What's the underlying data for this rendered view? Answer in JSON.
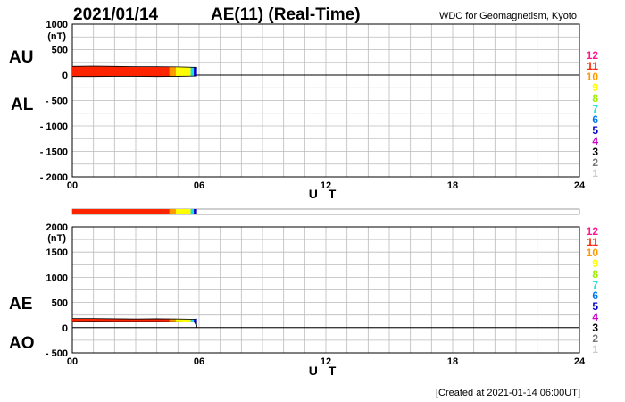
{
  "header": {
    "date": "2021/01/14",
    "title": "AE(11) (Real-Time)",
    "source": "WDC for Geomagnetism, Kyoto"
  },
  "footer": {
    "created": "[Created at 2021-01-14 06:00UT]"
  },
  "legend": {
    "items": [
      {
        "label": "12",
        "color": "#ff1493"
      },
      {
        "label": "11",
        "color": "#ff2400"
      },
      {
        "label": "10",
        "color": "#ff9900"
      },
      {
        "label": "9",
        "color": "#ffff00"
      },
      {
        "label": "8",
        "color": "#99ee00"
      },
      {
        "label": "7",
        "color": "#22dddd"
      },
      {
        "label": "6",
        "color": "#0077ee"
      },
      {
        "label": "5",
        "color": "#0000cc"
      },
      {
        "label": "4",
        "color": "#cc00cc"
      },
      {
        "label": "3",
        "color": "#000000"
      },
      {
        "label": "2",
        "color": "#777777"
      },
      {
        "label": "1",
        "color": "#cccccc"
      }
    ]
  },
  "chart_data": [
    {
      "type": "area",
      "name": "AU/AL",
      "series_labels": [
        "AU",
        "AL"
      ],
      "unit_label": "(nT)",
      "xlabel": "U T",
      "xlim": [
        0,
        24
      ],
      "ylim": [
        -2000,
        1000
      ],
      "x_ticks": [
        "00",
        "06",
        "12",
        "18",
        "24"
      ],
      "y_ticks": [
        "1000",
        "500",
        "0",
        "- 500",
        "- 1000",
        "- 1500",
        "- 2000"
      ],
      "y_tick_values": [
        1000,
        500,
        0,
        -500,
        -1000,
        -1500,
        -2000
      ],
      "grid": true,
      "data_end_hour": 5.9,
      "series": [
        {
          "name": "AU",
          "x": [
            0,
            1,
            2,
            3,
            4,
            5,
            5.9
          ],
          "values": [
            170,
            175,
            170,
            165,
            165,
            160,
            150
          ]
        },
        {
          "name": "AL",
          "x": [
            0,
            1,
            2,
            3,
            4,
            5,
            5.9
          ],
          "values": [
            -30,
            -30,
            -25,
            -25,
            -30,
            -25,
            -20
          ]
        }
      ],
      "station_count_bands": [
        {
          "x0": 0,
          "x1": 4.6,
          "count": 11
        },
        {
          "x0": 4.6,
          "x1": 4.9,
          "count": 10
        },
        {
          "x0": 4.9,
          "x1": 5.1,
          "count": 9
        },
        {
          "x0": 5.1,
          "x1": 5.6,
          "count": 9
        },
        {
          "x0": 5.6,
          "x1": 5.75,
          "count": 7
        },
        {
          "x0": 5.75,
          "x1": 5.9,
          "count": 5
        }
      ]
    },
    {
      "type": "area",
      "name": "AE/AO",
      "series_labels": [
        "AE",
        "AO"
      ],
      "unit_label": "(nT)",
      "xlabel": "U T",
      "xlim": [
        0,
        24
      ],
      "ylim": [
        -500,
        2000
      ],
      "x_ticks": [
        "00",
        "06",
        "12",
        "18",
        "24"
      ],
      "y_ticks": [
        "2000",
        "1500",
        "1000",
        "500",
        "0",
        "- 500"
      ],
      "y_tick_values": [
        2000,
        1500,
        1000,
        500,
        0,
        -500
      ],
      "grid": true,
      "data_end_hour": 5.9,
      "series": [
        {
          "name": "AE",
          "x": [
            0,
            1,
            2,
            3,
            4,
            5,
            5.85,
            5.9
          ],
          "values": [
            180,
            180,
            175,
            170,
            175,
            170,
            165,
            0
          ]
        },
        {
          "name": "AO",
          "x": [
            0,
            1,
            2,
            3,
            4,
            5,
            5.9
          ],
          "values": [
            120,
            125,
            120,
            120,
            120,
            115,
            110
          ]
        }
      ]
    }
  ]
}
